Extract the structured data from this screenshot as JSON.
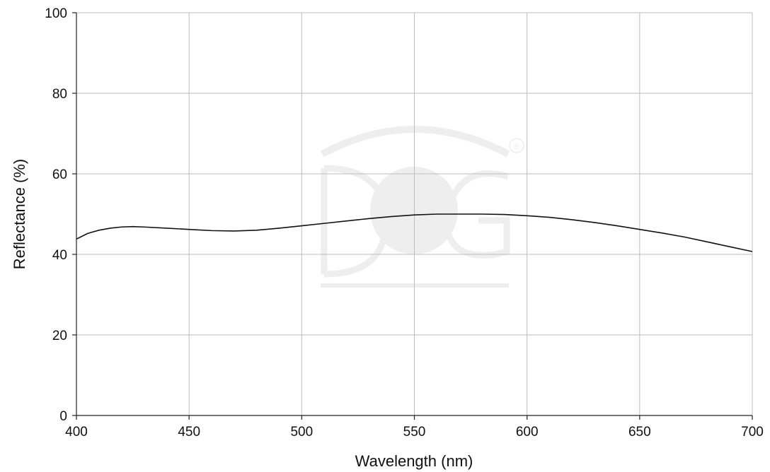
{
  "chart_data": {
    "type": "line",
    "title": "",
    "xlabel": "Wavelength (nm)",
    "ylabel": "Reflectance (%)",
    "xlim": [
      400,
      700
    ],
    "ylim": [
      0,
      100
    ],
    "x_ticks": [
      "400",
      "450",
      "500",
      "550",
      "600",
      "650",
      "700"
    ],
    "y_ticks": [
      "0",
      "20",
      "40",
      "60",
      "80",
      "100"
    ],
    "grid": true,
    "series": [
      {
        "color": "#111111",
        "x": [
          400,
          405,
          410,
          415,
          420,
          425,
          430,
          440,
          450,
          460,
          470,
          480,
          490,
          500,
          510,
          520,
          530,
          540,
          550,
          560,
          570,
          580,
          590,
          600,
          610,
          620,
          630,
          640,
          650,
          660,
          670,
          680,
          690,
          700
        ],
        "y": [
          43.8,
          45.2,
          46.0,
          46.5,
          46.8,
          46.9,
          46.8,
          46.5,
          46.2,
          45.9,
          45.8,
          46.0,
          46.5,
          47.1,
          47.7,
          48.3,
          48.9,
          49.4,
          49.8,
          50.0,
          50.0,
          50.0,
          49.9,
          49.6,
          49.2,
          48.6,
          47.9,
          47.1,
          46.2,
          45.3,
          44.3,
          43.1,
          41.9,
          40.7
        ]
      }
    ]
  },
  "watermark": {
    "registered_symbol": "®",
    "color": "#eeeeee"
  }
}
